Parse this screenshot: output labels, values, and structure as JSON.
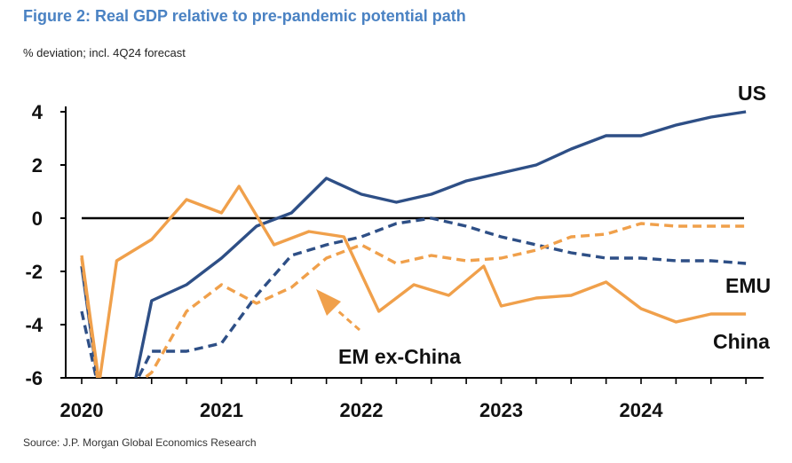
{
  "title": "Figure 2: Real GDP relative to pre-pandemic potential path",
  "subtitle": "% deviation; incl. 4Q24 forecast",
  "source": "Source: J.P. Morgan Global Economics Research",
  "colors": {
    "us": "#2e4f86",
    "china": "#f0a04b",
    "emu": "#2e4f86",
    "em_ex_china": "#f0a04b",
    "zero_line": "#000000"
  },
  "chart_data": {
    "type": "line",
    "xlabel": "",
    "ylabel": "",
    "ylim": [
      -6,
      4
    ],
    "xlim": [
      2019.875,
      2024.75
    ],
    "y_ticks": [
      4,
      2,
      0,
      -2,
      -4,
      -6
    ],
    "x_ticks": [
      2020,
      2021,
      2022,
      2023,
      2024
    ],
    "y_tick_labels": [
      "4",
      "2",
      "0",
      "-2",
      "-4",
      "-6"
    ],
    "x_tick_labels": [
      "2020",
      "2021",
      "2022",
      "2023",
      "2024"
    ],
    "grid": false,
    "legend": "direct labels",
    "annotation": "arrow pointing to EM ex-China",
    "series": [
      {
        "name": "US",
        "style": "solid",
        "color": "#2e4f86",
        "x": [
          2020.0,
          2020.125,
          2020.375,
          2020.5,
          2020.75,
          2021.0,
          2021.25,
          2021.5,
          2021.75,
          2022.0,
          2022.25,
          2022.5,
          2022.75,
          2023.0,
          2023.25,
          2023.5,
          2023.75,
          2024.0,
          2024.25,
          2024.5,
          2024.75
        ],
        "y": [
          -1.8,
          -6.5,
          -6.3,
          -3.1,
          -2.5,
          -1.5,
          -0.3,
          0.2,
          1.5,
          0.9,
          0.6,
          0.9,
          1.4,
          1.7,
          2.0,
          2.6,
          3.1,
          3.1,
          3.5,
          3.8,
          4.0
        ]
      },
      {
        "name": "EMU",
        "style": "dashed",
        "color": "#2e4f86",
        "x": [
          2020.0,
          2020.125,
          2020.375,
          2020.5,
          2020.75,
          2021.0,
          2021.25,
          2021.5,
          2021.75,
          2022.0,
          2022.25,
          2022.5,
          2022.75,
          2023.0,
          2023.25,
          2023.5,
          2023.75,
          2024.0,
          2024.25,
          2024.5,
          2024.75
        ],
        "y": [
          -3.5,
          -6.5,
          -6.3,
          -5.0,
          -5.0,
          -4.7,
          -2.9,
          -1.4,
          -1.0,
          -0.7,
          -0.2,
          0.0,
          -0.3,
          -0.7,
          -1.0,
          -1.3,
          -1.5,
          -1.5,
          -1.6,
          -1.6,
          -1.7
        ]
      },
      {
        "name": "China",
        "style": "solid",
        "color": "#f0a04b",
        "x": [
          2020.0,
          2020.125,
          2020.25,
          2020.5,
          2020.75,
          2021.0,
          2021.125,
          2021.375,
          2021.625,
          2021.875,
          2022.125,
          2022.375,
          2022.625,
          2022.875,
          2023.0,
          2023.25,
          2023.5,
          2023.75,
          2024.0,
          2024.25,
          2024.5,
          2024.75
        ],
        "y": [
          -1.4,
          -6.2,
          -1.6,
          -0.8,
          0.7,
          0.2,
          1.2,
          -1.0,
          -0.5,
          -0.7,
          -3.5,
          -2.5,
          -2.9,
          -1.8,
          -3.3,
          -3.0,
          -2.9,
          -2.4,
          -3.4,
          -3.9,
          -3.6,
          -3.6
        ]
      },
      {
        "name": "EM ex-China",
        "style": "dashed",
        "color": "#f0a04b",
        "x": [
          2020.0,
          2020.125,
          2020.375,
          2020.5,
          2020.75,
          2021.0,
          2021.25,
          2021.5,
          2021.75,
          2022.0,
          2022.25,
          2022.5,
          2022.75,
          2023.0,
          2023.25,
          2023.5,
          2023.75,
          2024.0,
          2024.25,
          2024.5,
          2024.75
        ],
        "y": [
          -1.5,
          -6.5,
          -6.3,
          -5.8,
          -3.5,
          -2.5,
          -3.2,
          -2.6,
          -1.5,
          -1.0,
          -1.7,
          -1.4,
          -1.6,
          -1.5,
          -1.2,
          -0.7,
          -0.6,
          -0.2,
          -0.3,
          -0.3,
          -0.3
        ]
      }
    ]
  }
}
